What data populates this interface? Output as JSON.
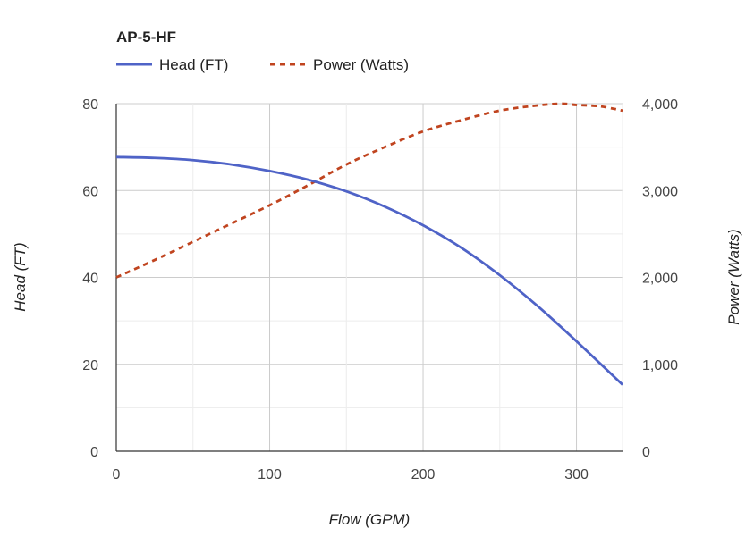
{
  "chart_data": {
    "type": "line",
    "title": "AP-5-HF",
    "xlabel": "Flow (GPM)",
    "ylabel_left": "Head (FT)",
    "ylabel_right": "Power (Watts)",
    "xlim": [
      0,
      330
    ],
    "ylim_left": [
      0,
      80
    ],
    "ylim_right": [
      0,
      4000
    ],
    "x_ticks": [
      "0",
      "100",
      "200",
      "300"
    ],
    "y_left_ticks": [
      "0",
      "20",
      "40",
      "60",
      "80"
    ],
    "y_right_ticks": [
      "0",
      "1,000",
      "2,000",
      "3,000",
      "4,000"
    ],
    "grid": true,
    "legend_position": "top-left",
    "series": [
      {
        "name": "Head (FT)",
        "axis": "left",
        "style": "solid",
        "color": "#4f63c7",
        "x": [
          0,
          25,
          50,
          75,
          100,
          125,
          150,
          175,
          200,
          225,
          250,
          275,
          300,
          330
        ],
        "y": [
          67.7,
          67.5,
          67.0,
          66.0,
          64.5,
          62.5,
          59.8,
          56.3,
          52.0,
          46.8,
          40.5,
          33.3,
          25.3,
          15.3
        ]
      },
      {
        "name": "Power (Watts)",
        "axis": "right",
        "style": "dashed",
        "color": "#c0441f",
        "x": [
          0,
          25,
          50,
          75,
          100,
          125,
          150,
          175,
          200,
          225,
          250,
          275,
          290,
          300,
          315,
          330
        ],
        "y": [
          2000,
          2200,
          2410,
          2620,
          2830,
          3060,
          3300,
          3500,
          3680,
          3810,
          3920,
          3980,
          4000,
          3985,
          3970,
          3920
        ]
      }
    ]
  }
}
